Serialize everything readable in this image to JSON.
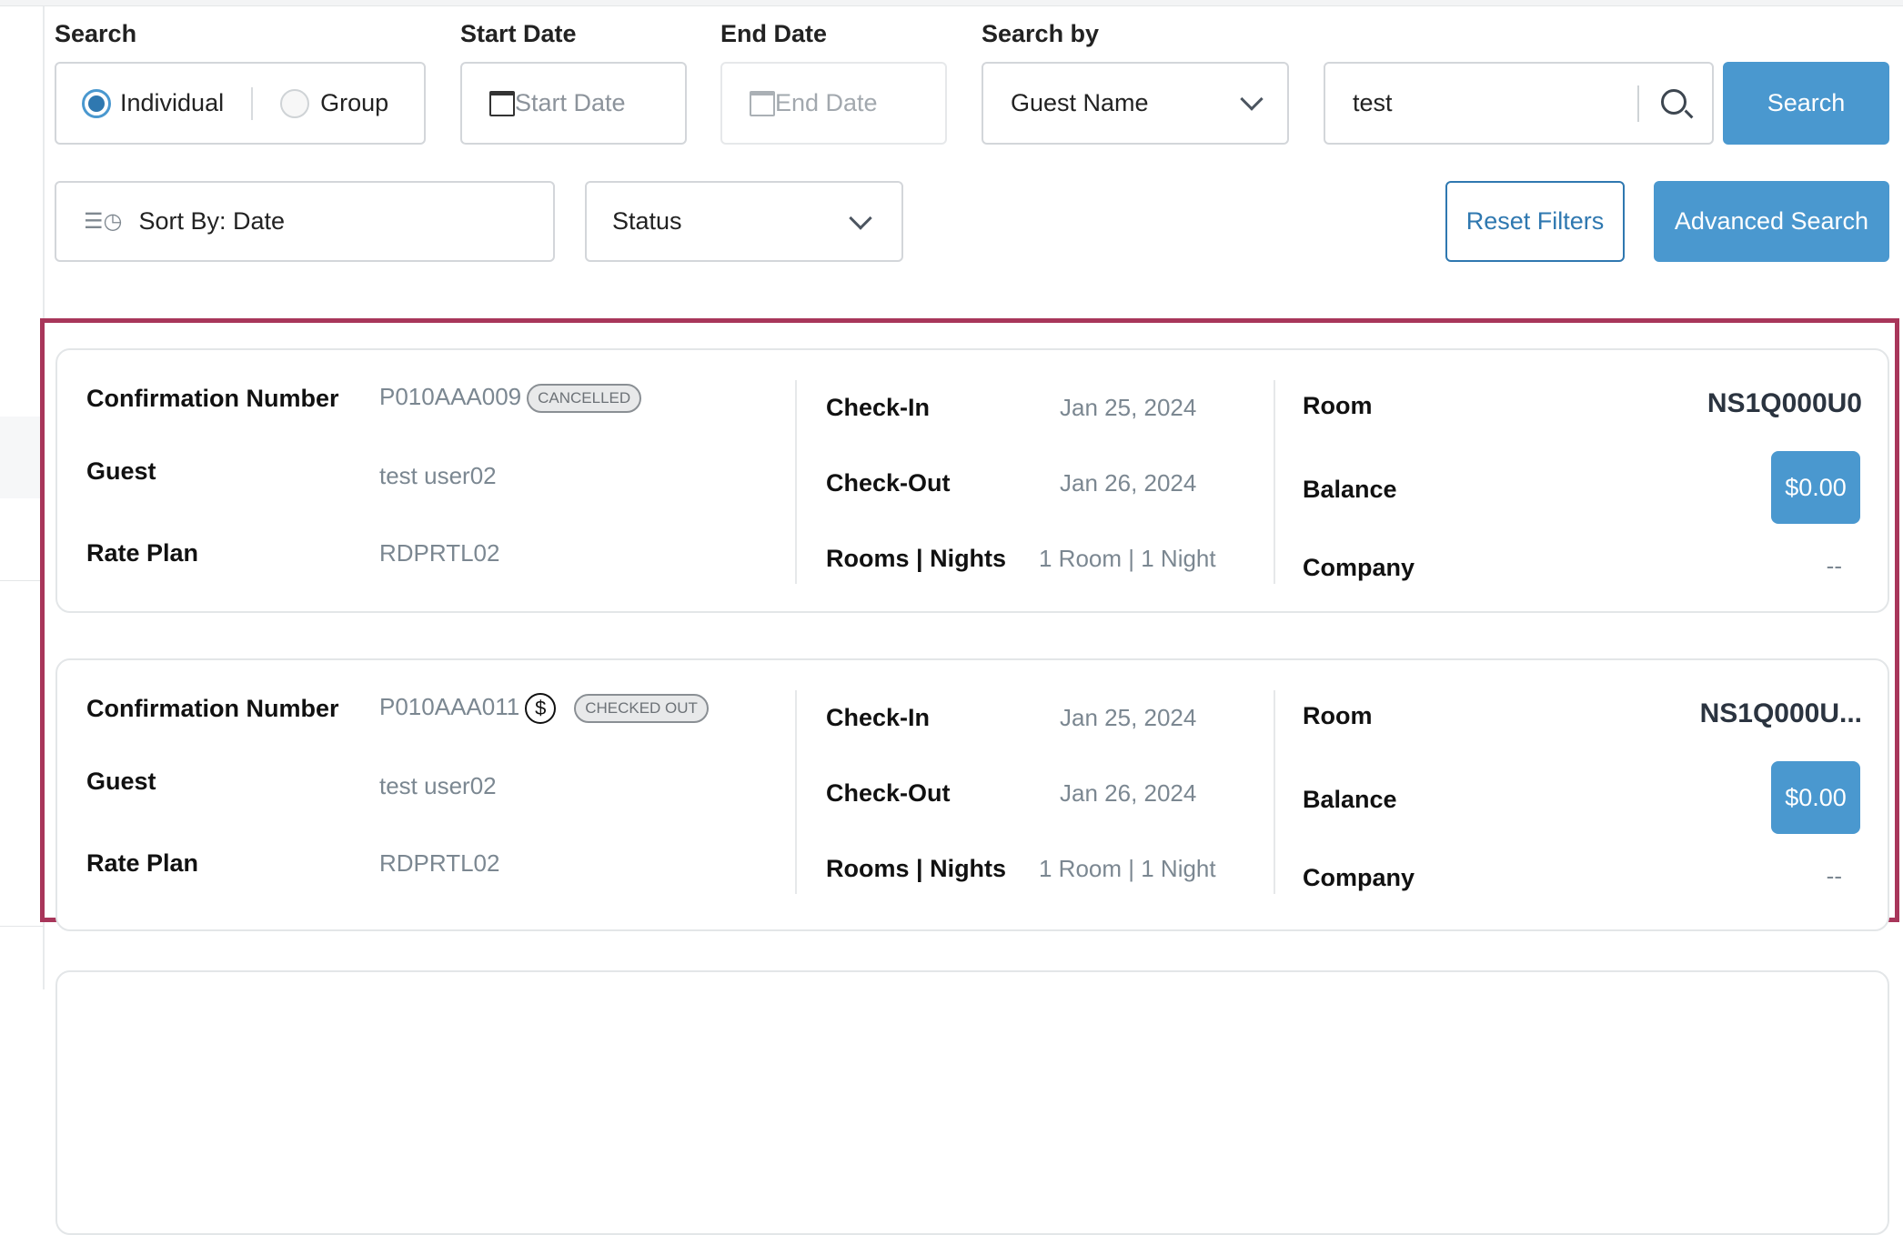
{
  "filters": {
    "search_label": "Search",
    "individual": "Individual",
    "group": "Group",
    "selected_mode": "Individual",
    "start_date_label": "Start Date",
    "start_date_placeholder": "Start Date",
    "end_date_label": "End Date",
    "end_date_placeholder": "End Date",
    "search_by_label": "Search by",
    "search_by_value": "Guest Name",
    "search_value": "test",
    "search_button": "Search",
    "sort_label": "Sort By: Date",
    "status_placeholder": "Status",
    "reset_button": "Reset Filters",
    "advanced_button": "Advanced Search"
  },
  "labels": {
    "confirmation": "Confirmation Number",
    "guest": "Guest",
    "rate_plan": "Rate Plan",
    "check_in": "Check-In",
    "check_out": "Check-Out",
    "rooms_nights": "Rooms | Nights",
    "room": "Room",
    "balance": "Balance",
    "company": "Company"
  },
  "reservations": [
    {
      "confirmation": "P010AAA009",
      "status": "CANCELLED",
      "has_payment_icon": false,
      "guest": "test user02",
      "rate_plan": "RDPRTL02",
      "check_in": "Jan 25, 2024",
      "check_out": "Jan 26, 2024",
      "rooms_nights": "1 Room | 1 Night",
      "room": "NS1Q000U0",
      "balance": "$0.00",
      "company": "--"
    },
    {
      "confirmation": "P010AAA011",
      "status": "CHECKED OUT",
      "has_payment_icon": true,
      "guest": "test user02",
      "rate_plan": "RDPRTL02",
      "check_in": "Jan 25, 2024",
      "check_out": "Jan 26, 2024",
      "rooms_nights": "1 Room | 1 Night",
      "room": "NS1Q000U...",
      "balance": "$0.00",
      "company": "--"
    }
  ],
  "colors": {
    "accent": "#4a98cf",
    "highlight_frame": "#a8365a"
  }
}
